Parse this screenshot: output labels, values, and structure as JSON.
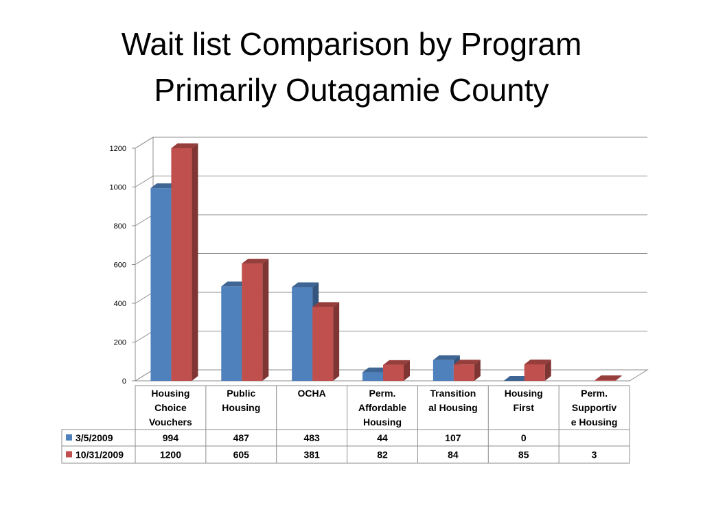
{
  "title_line1": "Wait list Comparison by Program",
  "title_line2": "Primarily Outagamie County",
  "chart_data": {
    "type": "bar",
    "style": "3d-clustered-column-with-data-table",
    "ylim": [
      0,
      1200
    ],
    "yticks": [
      0,
      200,
      400,
      600,
      800,
      1000,
      1200
    ],
    "grid": true,
    "categories": [
      [
        "Housing",
        "Choice",
        "Vouchers"
      ],
      [
        "Public",
        "Housing"
      ],
      [
        "OCHA"
      ],
      [
        "Perm.",
        "Affordable",
        "Housing"
      ],
      [
        "Transition",
        "al Housing"
      ],
      [
        "Housing",
        "First"
      ],
      [
        "Perm.",
        "Supportiv",
        "e Housing"
      ]
    ],
    "series": [
      {
        "name": "3/5/2009",
        "color": "#4f81bd",
        "values": [
          994,
          487,
          483,
          44,
          107,
          0,
          null
        ]
      },
      {
        "name": "10/31/2009",
        "color": "#c0504d",
        "values": [
          1200,
          605,
          381,
          82,
          84,
          85,
          3
        ]
      }
    ]
  }
}
